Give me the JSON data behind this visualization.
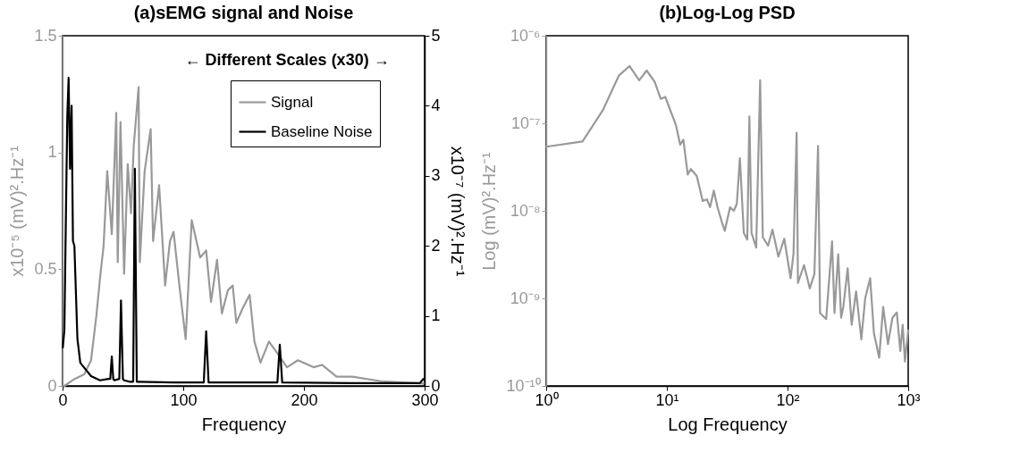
{
  "chart_data": [
    {
      "type": "line",
      "title": "(a)sEMG signal and Noise",
      "xlabel": "Frequency",
      "ylabel": "x10⁻⁵ (mV)².Hz⁻¹",
      "y2label": "x10⁻⁷ (mV)².Hz⁻¹",
      "xlim": [
        0,
        300
      ],
      "xticks": [
        0,
        100,
        200,
        300
      ],
      "ylim": [
        0,
        1.5
      ],
      "yticks": [
        0,
        0.5,
        1,
        1.5
      ],
      "y2lim": [
        0,
        5
      ],
      "y2ticks": [
        0,
        1,
        2,
        3,
        4,
        5
      ],
      "legend": "top right",
      "annotations": [
        "← Different Scales (x30) →"
      ],
      "series": [
        {
          "name": "Signal",
          "color": "#999999",
          "x": [
            1.5,
            10,
            18,
            23.6,
            28,
            31,
            34,
            37,
            40.8,
            44.5,
            45.7,
            48,
            51,
            54,
            56.7,
            59,
            63,
            64,
            68,
            73,
            75,
            80,
            85,
            89,
            92,
            97,
            102,
            107,
            114,
            119,
            123,
            128,
            132,
            137,
            141,
            144,
            149,
            155,
            159,
            164,
            171,
            178,
            186,
            195,
            208,
            215,
            227,
            240,
            264,
            299
          ],
          "values": [
            0.0,
            0.03,
            0.05,
            0.11,
            0.3,
            0.46,
            0.6,
            0.92,
            0.65,
            1.17,
            0.53,
            1.13,
            0.48,
            0.95,
            0.74,
            1.03,
            1.28,
            0.53,
            0.92,
            1.1,
            0.62,
            0.86,
            0.43,
            0.62,
            0.66,
            0.42,
            0.2,
            0.71,
            0.55,
            0.58,
            0.36,
            0.54,
            0.31,
            0.41,
            0.43,
            0.27,
            0.33,
            0.39,
            0.19,
            0.1,
            0.19,
            0.14,
            0.08,
            0.11,
            0.08,
            0.09,
            0.04,
            0.04,
            0.02,
            0.01
          ]
        },
        {
          "name": "Baseline Noise",
          "color": "#000000",
          "axis": "y2",
          "x": [
            0.2,
            1.5,
            3.9,
            5,
            6.2,
            7.5,
            8.6,
            9.8,
            12.3,
            14.7,
            18.4,
            23.6,
            31,
            38,
            39.5,
            40.8,
            42,
            43,
            47,
            48.4,
            50,
            51,
            55.5,
            58.5,
            59.9,
            61.5,
            63,
            92,
            117,
            119,
            121,
            150,
            178,
            180,
            182,
            240,
            296,
            299
          ],
          "values": [
            0.55,
            0.8,
            3.85,
            4.4,
            3.1,
            4.0,
            2.07,
            2.0,
            0.67,
            0.33,
            0.25,
            0.14,
            0.08,
            0.1,
            0.1,
            0.42,
            0.1,
            0.08,
            0.1,
            1.22,
            0.1,
            0.08,
            0.06,
            0.06,
            3.1,
            0.06,
            0.06,
            0.05,
            0.05,
            0.78,
            0.05,
            0.05,
            0.05,
            0.59,
            0.05,
            0.04,
            0.04,
            0.1
          ]
        }
      ]
    },
    {
      "type": "line",
      "title": "(b)Log-Log PSD",
      "xlabel": "Log Frequency",
      "ylabel": "Log (mV)².Hz⁻¹",
      "log": "xy",
      "xlim": [
        1,
        1000
      ],
      "xticks": [
        {
          "value": 1,
          "label": "10⁰"
        },
        {
          "value": 10,
          "label": "10¹"
        },
        {
          "value": 100,
          "label": "10²"
        },
        {
          "value": 1000,
          "label": "10³"
        }
      ],
      "ylim": [
        1e-10,
        1e-06
      ],
      "yticks": [
        {
          "value": 1e-10,
          "label": "10⁻¹⁰"
        },
        {
          "value": 1e-09,
          "label": "10⁻⁹"
        },
        {
          "value": 1e-08,
          "label": "10⁻⁸"
        },
        {
          "value": 1e-07,
          "label": "10⁻⁷"
        },
        {
          "value": 1e-06,
          "label": "10⁻⁶"
        }
      ],
      "series": [
        {
          "color": "#999999",
          "x": [
            1,
            2,
            2.94,
            4,
            4.9,
            5.9,
            6.8,
            7.9,
            8.9,
            9.7,
            11.9,
            12.9,
            13.7,
            14.9,
            15.8,
            17.7,
            19.8,
            21.5,
            22.8,
            24.5,
            26.3,
            28.6,
            30.2,
            33.4,
            35.9,
            38,
            40.3,
            43.4,
            46.4,
            48.3,
            50.3,
            55,
            59.3,
            62.4,
            69,
            75,
            84,
            94,
            106,
            112,
            119,
            122,
            137,
            153,
            167,
            179,
            186,
            209,
            234,
            245,
            263,
            278,
            290,
            315,
            340,
            370,
            409,
            440,
            484,
            520,
            575,
            620,
            680,
            740,
            805,
            860,
            900,
            940,
            1000
          ],
          "values": [
            5.4e-08,
            6.2e-08,
            1.4e-07,
            3.5e-07,
            4.5e-07,
            3.1e-07,
            4e-07,
            3e-07,
            1.9e-07,
            2e-07,
            9.5e-08,
            5.7e-08,
            6.5e-08,
            2.6e-08,
            3e-08,
            2.5e-08,
            1.3e-08,
            1.35e-08,
            1.1e-08,
            1.7e-08,
            1.1e-08,
            7.4e-09,
            5.9e-09,
            1.1e-08,
            1e-08,
            1.2e-08,
            4e-08,
            5.6e-09,
            4.7e-09,
            1.2e-07,
            5.6e-09,
            3.8e-09,
            3.1e-07,
            5e-09,
            4e-09,
            6.1e-09,
            3e-09,
            4.8e-09,
            1.7e-09,
            3.2e-09,
            7.8e-08,
            1.5e-09,
            2.4e-09,
            1.3e-09,
            1.9e-09,
            5.5e-08,
            6.8e-10,
            5.8e-10,
            4.5e-09,
            6.8e-10,
            3.2e-09,
            6e-10,
            8e-10,
            2.2e-09,
            5e-10,
            1.2e-09,
            3.4e-10,
            1e-09,
            1.7e-09,
            4e-10,
            2.1e-10,
            8e-10,
            3e-10,
            6e-10,
            6.9e-10,
            2.5e-10,
            5e-10,
            1.9e-10,
            4.3e-10
          ]
        }
      ]
    }
  ]
}
